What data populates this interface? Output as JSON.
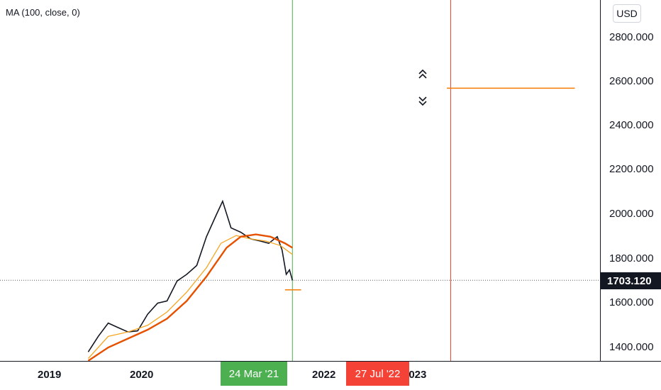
{
  "indicator": {
    "label": "MA (100, close, 0)"
  },
  "price_axis": {
    "currency": "USD",
    "ticks": [
      "2800.000",
      "2600.000",
      "2400.000",
      "2200.000",
      "2000.000",
      "1800.000",
      "1600.000",
      "1400.000"
    ],
    "last_price": "1703.120"
  },
  "time_axis": {
    "ticks": [
      "2019",
      "2020",
      "2022",
      "2023"
    ]
  },
  "markers": {
    "green": {
      "label": "24 Mar '21",
      "color": "#4caf50"
    },
    "red": {
      "label": "27 Jul '22",
      "color": "#f44336"
    }
  },
  "colors": {
    "candles": "#131722",
    "ma_fast": "#f5a623",
    "ma_slow": "#e65100",
    "drawing_line": "#f57c00"
  },
  "icons": {
    "arrow_up": "double-chevron-up-icon",
    "arrow_down": "double-chevron-down-icon"
  },
  "chart_data": {
    "type": "line",
    "ylim": [
      1340,
      2880
    ],
    "x_range": [
      "2018-10-01",
      "2023-11-01"
    ],
    "series": [
      {
        "x": [
          "2019-07-01",
          "2019-08-01",
          "2019-09-01",
          "2019-10-01",
          "2019-11-01",
          "2019-12-01",
          "2020-01-01",
          "2020-02-01",
          "2020-03-01",
          "2020-04-01",
          "2020-05-01",
          "2020-06-01",
          "2020-07-01",
          "2020-08-01",
          "2020-08-20",
          "2020-09-15",
          "2020-10-15",
          "2020-11-15",
          "2020-12-15",
          "2021-01-10",
          "2021-02-05",
          "2021-02-20",
          "2021-03-05",
          "2021-03-15",
          "2021-03-24"
        ],
        "y": [
          1380,
          1450,
          1510,
          1490,
          1470,
          1475,
          1550,
          1600,
          1610,
          1700,
          1730,
          1770,
          1900,
          2000,
          2060,
          1940,
          1920,
          1890,
          1880,
          1870,
          1900,
          1840,
          1730,
          1750,
          1703
        ]
      },
      {
        "x": [
          "2019-07-01",
          "2019-09-01",
          "2019-11-01",
          "2020-01-01",
          "2020-03-01",
          "2020-05-01",
          "2020-07-01",
          "2020-08-15",
          "2020-10-01",
          "2020-11-15",
          "2021-01-01",
          "2021-02-15",
          "2021-03-24"
        ],
        "y": [
          1350,
          1450,
          1470,
          1500,
          1560,
          1650,
          1760,
          1870,
          1905,
          1890,
          1880,
          1860,
          1820
        ]
      },
      {
        "x": [
          "2019-07-01",
          "2019-09-01",
          "2019-11-01",
          "2020-01-01",
          "2020-03-01",
          "2020-05-01",
          "2020-07-01",
          "2020-09-01",
          "2020-10-15",
          "2020-12-01",
          "2021-01-15",
          "2021-03-01",
          "2021-03-24"
        ],
        "y": [
          1340,
          1400,
          1440,
          1480,
          1530,
          1610,
          1720,
          1850,
          1900,
          1910,
          1900,
          1870,
          1850
        ]
      }
    ],
    "hlines": [
      {
        "y": 2570,
        "x_from": "2022-07-15",
        "x_to": "2023-08-15"
      },
      {
        "y": 1660,
        "x_from": "2021-03-01",
        "x_to": "2021-04-20"
      }
    ],
    "vlines": [
      {
        "x": "2021-03-24"
      },
      {
        "x": "2022-07-27"
      }
    ]
  }
}
